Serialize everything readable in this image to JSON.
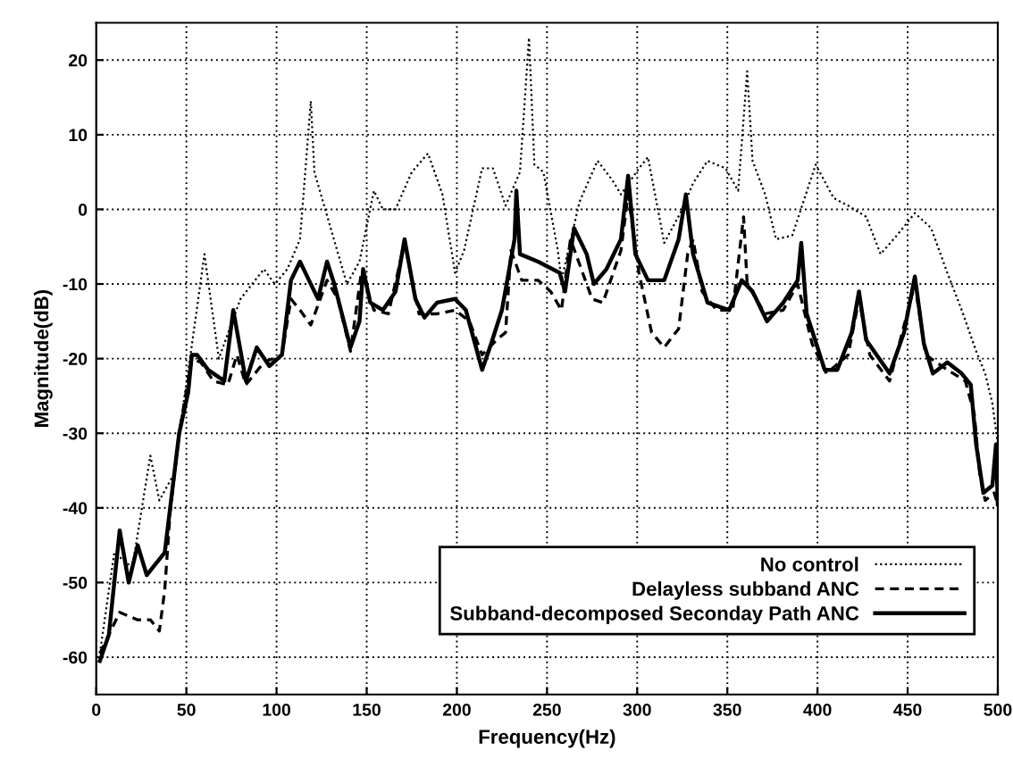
{
  "chart_data": {
    "type": "line",
    "xlabel": "Frequency(Hz)",
    "ylabel": "Magnitude(dB)",
    "xlim": [
      0,
      500
    ],
    "xticks": [
      0,
      50,
      100,
      150,
      200,
      250,
      300,
      350,
      400,
      450,
      500
    ],
    "ylim": [
      -65,
      25
    ],
    "yticks": [
      -60,
      -50,
      -40,
      -30,
      -20,
      -10,
      0,
      10,
      20
    ],
    "grid": true,
    "legend": "bottom right",
    "marker": "none",
    "series": [
      {
        "name": "No control",
        "color": "#000000",
        "line_style": "dotted",
        "x": [
          2,
          10,
          20,
          30,
          35,
          43,
          46,
          52,
          60,
          68,
          80,
          93,
          99,
          106,
          113,
          119,
          121,
          127,
          139,
          146,
          154,
          159,
          166,
          175,
          184,
          192,
          199,
          204,
          214,
          220,
          227,
          235,
          240,
          243,
          248,
          256,
          258,
          268,
          278,
          286,
          291,
          301,
          306,
          315,
          325,
          331,
          339,
          349,
          356,
          361,
          364,
          371,
          377,
          386,
          399,
          409,
          417,
          427,
          435,
          444,
          454,
          463,
          472,
          480,
          488,
          493,
          497,
          500
        ],
        "values": [
          -59.5,
          -46,
          -48,
          -33,
          -39,
          -35.5,
          -30,
          -20,
          -6,
          -20,
          -12,
          -8,
          -10,
          -8,
          -4,
          14.5,
          5,
          0,
          -10,
          -7,
          2.5,
          0,
          0,
          5,
          7.5,
          2,
          -8.5,
          -5.5,
          5.5,
          5.5,
          0.5,
          5,
          23,
          6,
          5,
          -5.5,
          -9.5,
          1,
          6.5,
          4,
          2,
          5.5,
          7,
          -4.5,
          0,
          3.5,
          6.5,
          5.5,
          2.5,
          18.5,
          6.5,
          2,
          -4,
          -3.5,
          6,
          1.5,
          0.5,
          -1,
          -6,
          -3.5,
          -0.5,
          -2.5,
          -8.5,
          -13.5,
          -19,
          -22,
          -26,
          -31.5
        ]
      },
      {
        "name": "Delayless subband ANC",
        "color": "#000000",
        "line_style": "dashed",
        "x": [
          2,
          13,
          23,
          30,
          35,
          38,
          41,
          46,
          53,
          58,
          65,
          73,
          78,
          83,
          93,
          103,
          108,
          113,
          119,
          128,
          134,
          141,
          147,
          154,
          162,
          171,
          179,
          189,
          199,
          207,
          214,
          222,
          227,
          230,
          236,
          245,
          252,
          258,
          263,
          275,
          281,
          291,
          295,
          301,
          308,
          315,
          323,
          328,
          331,
          336,
          344,
          353,
          359,
          361,
          371,
          381,
          389,
          397,
          405,
          417,
          423,
          429,
          440,
          454,
          460,
          472,
          482,
          487,
          490,
          493,
          498,
          500
        ],
        "values": [
          -59.5,
          -54,
          -55,
          -55,
          -56.5,
          -51,
          -40.5,
          -30,
          -20,
          -20.5,
          -23,
          -23.5,
          -19.5,
          -23.5,
          -20.5,
          -19.5,
          -12,
          -13.5,
          -15.5,
          -9.5,
          -12,
          -19,
          -8.5,
          -13.5,
          -14,
          -4.5,
          -14,
          -14,
          -13.5,
          -15,
          -19.5,
          -17.5,
          -16.5,
          -5.5,
          -9.5,
          -9.5,
          -11,
          -13.5,
          -4,
          -12,
          -12.5,
          -5.5,
          2,
          -8.5,
          -16.5,
          -18.5,
          -16,
          -6,
          -4,
          -11,
          -13.5,
          -13.5,
          -1,
          -10,
          -14,
          -13.5,
          -10,
          -18,
          -22,
          -19.5,
          -12,
          -19.5,
          -23,
          -10,
          -19.5,
          -21.5,
          -23,
          -27.5,
          -35.5,
          -39,
          -38,
          -39.5
        ]
      },
      {
        "name": "Subband-decomposed Seconday Path ANC",
        "color": "#000000",
        "line_style": "solid",
        "x": [
          2,
          7,
          13,
          18,
          23,
          28,
          33,
          38,
          41,
          46,
          51,
          53,
          56,
          62,
          71,
          76,
          83,
          89,
          96,
          103,
          108,
          113,
          118,
          123,
          128,
          132,
          141,
          146,
          148,
          152,
          159,
          166,
          171,
          177,
          182,
          189,
          199,
          205,
          214,
          219,
          225,
          232,
          233,
          235,
          245,
          257,
          260,
          265,
          272,
          276,
          283,
          291,
          295,
          299,
          306,
          315,
          323,
          327,
          331,
          339,
          351,
          358,
          364,
          372,
          381,
          389,
          391,
          394,
          404,
          411,
          419,
          423,
          427,
          440,
          448,
          454,
          459,
          464,
          472,
          480,
          485,
          488,
          492,
          497,
          499,
          500
        ],
        "values": [
          -60.5,
          -57,
          -43,
          -50,
          -45,
          -49,
          -47.5,
          -46,
          -40,
          -30,
          -24.5,
          -19.5,
          -19.5,
          -21.5,
          -23,
          -13.5,
          -23,
          -18.5,
          -21,
          -19.5,
          -9.5,
          -7,
          -9.5,
          -12,
          -7,
          -10,
          -18.5,
          -15,
          -8,
          -12.5,
          -13.5,
          -11,
          -4,
          -12,
          -14.5,
          -12.5,
          -12,
          -13.5,
          -21.5,
          -18,
          -13.5,
          -4,
          2.5,
          -6,
          -7,
          -8.5,
          -11,
          -2.5,
          -6,
          -10,
          -8,
          -4,
          4.5,
          -6,
          -9.5,
          -9.5,
          -4,
          2,
          -6,
          -12.5,
          -13.5,
          -9.5,
          -11,
          -15,
          -12.5,
          -9.5,
          -4.5,
          -14,
          -21.5,
          -21.5,
          -16.5,
          -11,
          -17.5,
          -22,
          -16.5,
          -9,
          -18,
          -22,
          -20.5,
          -22,
          -23.5,
          -31.5,
          -38,
          -37,
          -31.5,
          -39.5
        ]
      }
    ]
  }
}
